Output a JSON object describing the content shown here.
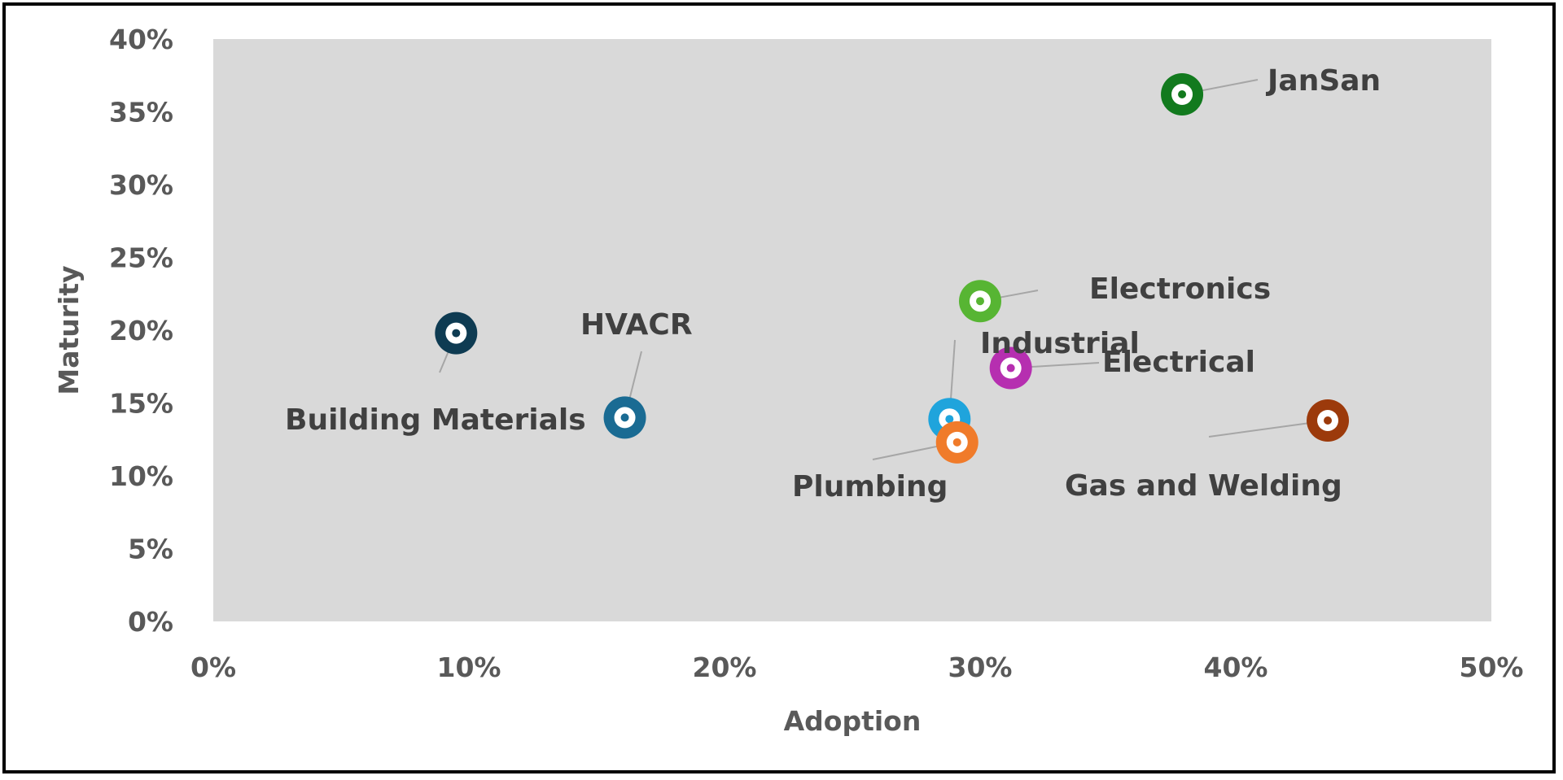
{
  "chart_data": {
    "type": "scatter",
    "title": "",
    "xlabel": "Adoption",
    "ylabel": "Maturity",
    "xlim": [
      0,
      0.5
    ],
    "ylim": [
      0,
      0.4
    ],
    "x_ticks": [
      "0%",
      "10%",
      "20%",
      "30%",
      "40%",
      "50%"
    ],
    "y_ticks": [
      "0%",
      "5%",
      "10%",
      "15%",
      "20%",
      "25%",
      "30%",
      "35%",
      "40%"
    ],
    "grid": false,
    "plot_background": "#d9d9d9",
    "points": [
      {
        "label": "Building Materials",
        "x": 0.095,
        "y": 0.198,
        "color": "#0e3b52"
      },
      {
        "label": "HVACR",
        "x": 0.161,
        "y": 0.14,
        "color": "#1a6b93"
      },
      {
        "label": "Industrial",
        "x": 0.288,
        "y": 0.139,
        "color": "#1fa4dc"
      },
      {
        "label": "Plumbing",
        "x": 0.291,
        "y": 0.123,
        "color": "#f07b2a"
      },
      {
        "label": "Electronics",
        "x": 0.3,
        "y": 0.22,
        "color": "#57b533"
      },
      {
        "label": "Electrical",
        "x": 0.312,
        "y": 0.174,
        "color": "#b62fb0"
      },
      {
        "label": "JanSan",
        "x": 0.379,
        "y": 0.362,
        "color": "#127a1e"
      },
      {
        "label": "Gas and Welding",
        "x": 0.436,
        "y": 0.138,
        "color": "#9c3a0b"
      }
    ]
  }
}
